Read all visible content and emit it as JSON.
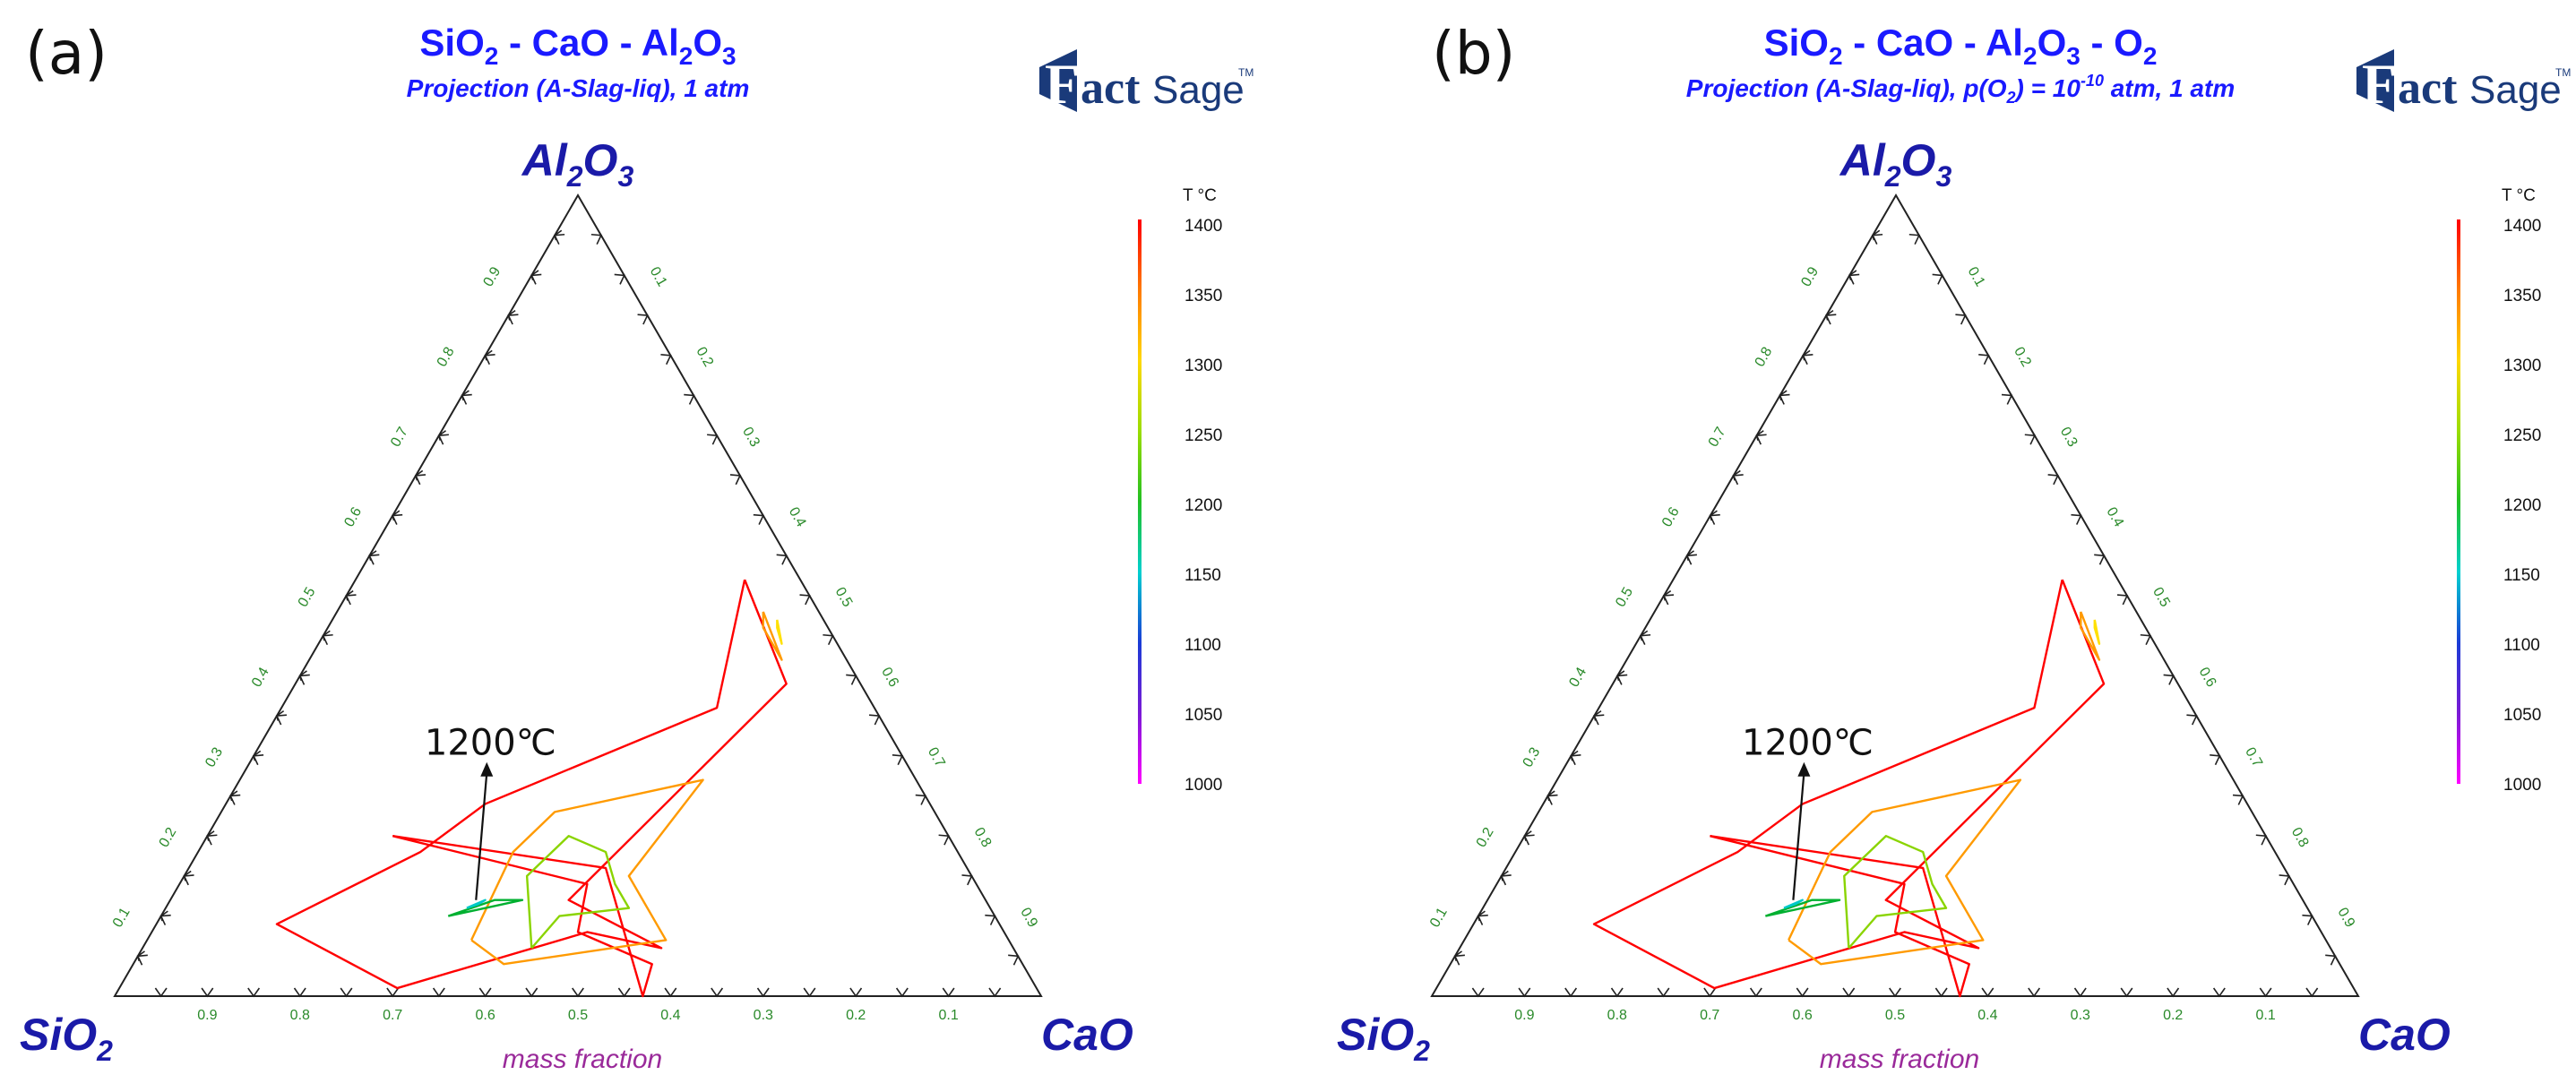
{
  "colorbar": {
    "title": "T °C",
    "ticks": [
      "1400",
      "1350",
      "1300",
      "1250",
      "1200",
      "1150",
      "1100",
      "1050",
      "1000"
    ],
    "stops": [
      "#ff0000",
      "#ff7a00",
      "#ffd800",
      "#9bdd00",
      "#22c022",
      "#00d0d0",
      "#1a3cd6",
      "#7a1ad6",
      "#ff00ff"
    ]
  },
  "colors": {
    "title": "#1a1aff",
    "axis_label": "#1a1aa8",
    "tick": "#2a8a2a",
    "mass_fraction": "#9a2a9a",
    "logo": "#1a3a7a"
  },
  "logo": {
    "f": "F",
    "act": "act",
    "sage": "Sage",
    "tm": "TM"
  },
  "chart_data": [
    {
      "type": "ternary",
      "panel_label": "(a)",
      "title": {
        "p1": "SiO",
        "s1": "2",
        "p2": " - CaO - Al",
        "s2": "2",
        "p3": "O",
        "s3": "3"
      },
      "subtitle": "Projection (A-Slag-liq), 1 atm",
      "apex_top": {
        "main": "Al",
        "s1": "2",
        "mid": "O",
        "s2": "3"
      },
      "apex_left": {
        "main": "SiO",
        "s1": "2"
      },
      "apex_right": "CaO",
      "xlabel": "mass fraction",
      "tick_labels": [
        "0.1",
        "0.2",
        "0.3",
        "0.4",
        "0.5",
        "0.6",
        "0.7",
        "0.8",
        "0.9"
      ],
      "annotation": "1200℃",
      "annotation_point": {
        "Al2O3": 0.12,
        "CaO": 0.33
      },
      "isotherms": [
        {
          "T": 1400,
          "color": "#ff0000",
          "regions": [
            [
              [
                0.2,
                0.2
              ],
              [
                0.14,
                0.44
              ],
              [
                0.08,
                0.46
              ],
              [
                0.04,
                0.56
              ],
              [
                0.0,
                0.57
              ],
              [
                0.16,
                0.45
              ],
              [
                0.2,
                0.2
              ]
            ],
            [
              [
                0.52,
                0.42
              ],
              [
                0.39,
                0.53
              ],
              [
                0.12,
                0.43
              ],
              [
                0.06,
                0.56
              ],
              [
                0.08,
                0.47
              ],
              [
                0.01,
                0.3
              ],
              [
                0.09,
                0.13
              ],
              [
                0.18,
                0.24
              ],
              [
                0.24,
                0.28
              ],
              [
                0.36,
                0.47
              ],
              [
                0.52,
                0.42
              ]
            ]
          ]
        },
        {
          "T": 1350,
          "color": "#ff9a00",
          "regions": [
            [
              [
                0.48,
                0.46
              ],
              [
                0.42,
                0.51
              ],
              [
                0.46,
                0.47
              ],
              [
                0.48,
                0.46
              ]
            ],
            [
              [
                0.07,
                0.35
              ],
              [
                0.18,
                0.34
              ],
              [
                0.23,
                0.36
              ],
              [
                0.27,
                0.5
              ],
              [
                0.15,
                0.48
              ],
              [
                0.07,
                0.56
              ],
              [
                0.04,
                0.4
              ],
              [
                0.07,
                0.35
              ]
            ]
          ]
        },
        {
          "T": 1300,
          "color": "#ffe000",
          "regions": [
            [
              [
                0.47,
                0.48
              ],
              [
                0.44,
                0.5
              ],
              [
                0.46,
                0.485
              ],
              [
                0.47,
                0.48
              ]
            ]
          ]
        },
        {
          "T": 1250,
          "color": "#8ad400",
          "regions": [
            [
              [
                0.06,
                0.42
              ],
              [
                0.15,
                0.37
              ],
              [
                0.2,
                0.39
              ],
              [
                0.18,
                0.44
              ],
              [
                0.14,
                0.47
              ],
              [
                0.11,
                0.5
              ],
              [
                0.1,
                0.43
              ],
              [
                0.06,
                0.42
              ]
            ]
          ]
        },
        {
          "T": 1200,
          "color": "#00b030",
          "regions": [
            [
              [
                0.1,
                0.31
              ],
              [
                0.12,
                0.35
              ],
              [
                0.12,
                0.38
              ],
              [
                0.1,
                0.31
              ]
            ]
          ]
        },
        {
          "T": 1150,
          "color": "#00c8c8",
          "regions": [
            [
              [
                0.11,
                0.325
              ],
              [
                0.115,
                0.335
              ],
              [
                0.12,
                0.34
              ],
              [
                0.11,
                0.325
              ]
            ]
          ]
        }
      ]
    },
    {
      "type": "ternary",
      "panel_label": "(b)",
      "title": {
        "p1": "SiO",
        "s1": "2",
        "p2": " - CaO - Al",
        "s2": "2",
        "p3": "O",
        "s3": "3",
        "p4": " - O",
        "s4": "2"
      },
      "subtitle": {
        "p1": "Projection (A-Slag-liq), p(O",
        "s1": "2",
        "p2": ") = 10",
        "sup": "-10",
        "p3": " atm, 1 atm"
      },
      "apex_top": {
        "main": "Al",
        "s1": "2",
        "mid": "O",
        "s2": "3"
      },
      "apex_left": {
        "main": "SiO",
        "s1": "2"
      },
      "apex_right": "CaO",
      "xlabel": "mass fraction",
      "tick_labels": [
        "0.1",
        "0.2",
        "0.3",
        "0.4",
        "0.5",
        "0.6",
        "0.7",
        "0.8",
        "0.9"
      ],
      "annotation": "1200℃",
      "annotation_point": {
        "Al2O3": 0.12,
        "CaO": 0.33
      },
      "isotherms": [
        {
          "T": 1400,
          "color": "#ff0000",
          "regions": [
            [
              [
                0.2,
                0.2
              ],
              [
                0.14,
                0.44
              ],
              [
                0.08,
                0.46
              ],
              [
                0.04,
                0.56
              ],
              [
                0.0,
                0.57
              ],
              [
                0.16,
                0.45
              ],
              [
                0.2,
                0.2
              ]
            ],
            [
              [
                0.52,
                0.42
              ],
              [
                0.39,
                0.53
              ],
              [
                0.12,
                0.43
              ],
              [
                0.06,
                0.56
              ],
              [
                0.08,
                0.47
              ],
              [
                0.01,
                0.3
              ],
              [
                0.09,
                0.13
              ],
              [
                0.18,
                0.24
              ],
              [
                0.24,
                0.28
              ],
              [
                0.36,
                0.47
              ],
              [
                0.52,
                0.42
              ]
            ]
          ]
        },
        {
          "T": 1350,
          "color": "#ff9a00",
          "regions": [
            [
              [
                0.48,
                0.46
              ],
              [
                0.42,
                0.51
              ],
              [
                0.46,
                0.47
              ],
              [
                0.48,
                0.46
              ]
            ],
            [
              [
                0.07,
                0.35
              ],
              [
                0.18,
                0.34
              ],
              [
                0.23,
                0.36
              ],
              [
                0.27,
                0.5
              ],
              [
                0.15,
                0.48
              ],
              [
                0.07,
                0.56
              ],
              [
                0.04,
                0.4
              ],
              [
                0.07,
                0.35
              ]
            ]
          ]
        },
        {
          "T": 1300,
          "color": "#ffe000",
          "regions": [
            [
              [
                0.47,
                0.48
              ],
              [
                0.44,
                0.5
              ],
              [
                0.46,
                0.485
              ],
              [
                0.47,
                0.48
              ]
            ]
          ]
        },
        {
          "T": 1250,
          "color": "#8ad400",
          "regions": [
            [
              [
                0.06,
                0.42
              ],
              [
                0.15,
                0.37
              ],
              [
                0.2,
                0.39
              ],
              [
                0.18,
                0.44
              ],
              [
                0.14,
                0.47
              ],
              [
                0.11,
                0.5
              ],
              [
                0.1,
                0.43
              ],
              [
                0.06,
                0.42
              ]
            ]
          ]
        },
        {
          "T": 1200,
          "color": "#00b030",
          "regions": [
            [
              [
                0.1,
                0.31
              ],
              [
                0.12,
                0.35
              ],
              [
                0.12,
                0.38
              ],
              [
                0.1,
                0.31
              ]
            ]
          ]
        },
        {
          "T": 1150,
          "color": "#00c8c8",
          "regions": [
            [
              [
                0.11,
                0.325
              ],
              [
                0.115,
                0.335
              ],
              [
                0.12,
                0.34
              ],
              [
                0.11,
                0.325
              ]
            ]
          ]
        }
      ]
    }
  ]
}
